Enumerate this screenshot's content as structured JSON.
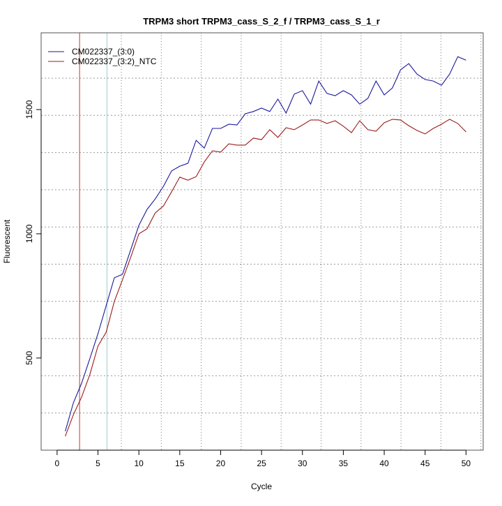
{
  "chart_data": {
    "type": "line",
    "title": "TRPM3 short TRPM3_cass_S_2_f / TRPM3_cass_S_1_r",
    "xlabel": "Cycle",
    "ylabel": "Fluorescent",
    "xlim": [
      -1.95,
      52.1
    ],
    "ylim": [
      129,
      1809
    ],
    "xticks": [
      0,
      5,
      10,
      15,
      20,
      25,
      30,
      35,
      40,
      45,
      50
    ],
    "yticks": [
      500,
      1000,
      1500
    ],
    "grid": true,
    "legend_position": "top-left",
    "threshold_lines": [
      {
        "cycle": 2.75,
        "color": "#c0392b"
      },
      {
        "cycle": 6.1,
        "color": "#a0c8d0"
      }
    ],
    "x": [
      1,
      2,
      3,
      4,
      5,
      6,
      7,
      8,
      9,
      10,
      11,
      12,
      13,
      14,
      15,
      16,
      17,
      18,
      19,
      20,
      21,
      22,
      23,
      24,
      25,
      26,
      27,
      28,
      29,
      30,
      31,
      32,
      33,
      34,
      35,
      36,
      37,
      38,
      39,
      40,
      41,
      42,
      43,
      44,
      45,
      46,
      47,
      48,
      49,
      50
    ],
    "series": [
      {
        "name": "CM022337_(3:0)",
        "color": "#1a1a9c",
        "values": [
          205,
          320,
          399,
          497,
          598,
          711,
          823,
          837,
          935,
          1034,
          1098,
          1140,
          1191,
          1253,
          1272,
          1284,
          1376,
          1345,
          1424,
          1424,
          1441,
          1438,
          1483,
          1492,
          1506,
          1492,
          1542,
          1486,
          1562,
          1576,
          1522,
          1615,
          1565,
          1556,
          1576,
          1559,
          1522,
          1545,
          1615,
          1559,
          1587,
          1660,
          1685,
          1643,
          1621,
          1615,
          1598,
          1643,
          1713,
          1699
        ]
      },
      {
        "name": "CM022337_(3:2)_NTC",
        "color": "#9b1c1c",
        "values": [
          185,
          272,
          343,
          433,
          548,
          604,
          728,
          815,
          905,
          1000,
          1020,
          1084,
          1112,
          1169,
          1228,
          1216,
          1230,
          1289,
          1334,
          1329,
          1362,
          1357,
          1357,
          1385,
          1379,
          1419,
          1388,
          1427,
          1419,
          1438,
          1458,
          1458,
          1444,
          1455,
          1433,
          1407,
          1455,
          1419,
          1413,
          1447,
          1461,
          1458,
          1435,
          1416,
          1402,
          1424,
          1441,
          1461,
          1444,
          1410
        ]
      }
    ]
  }
}
